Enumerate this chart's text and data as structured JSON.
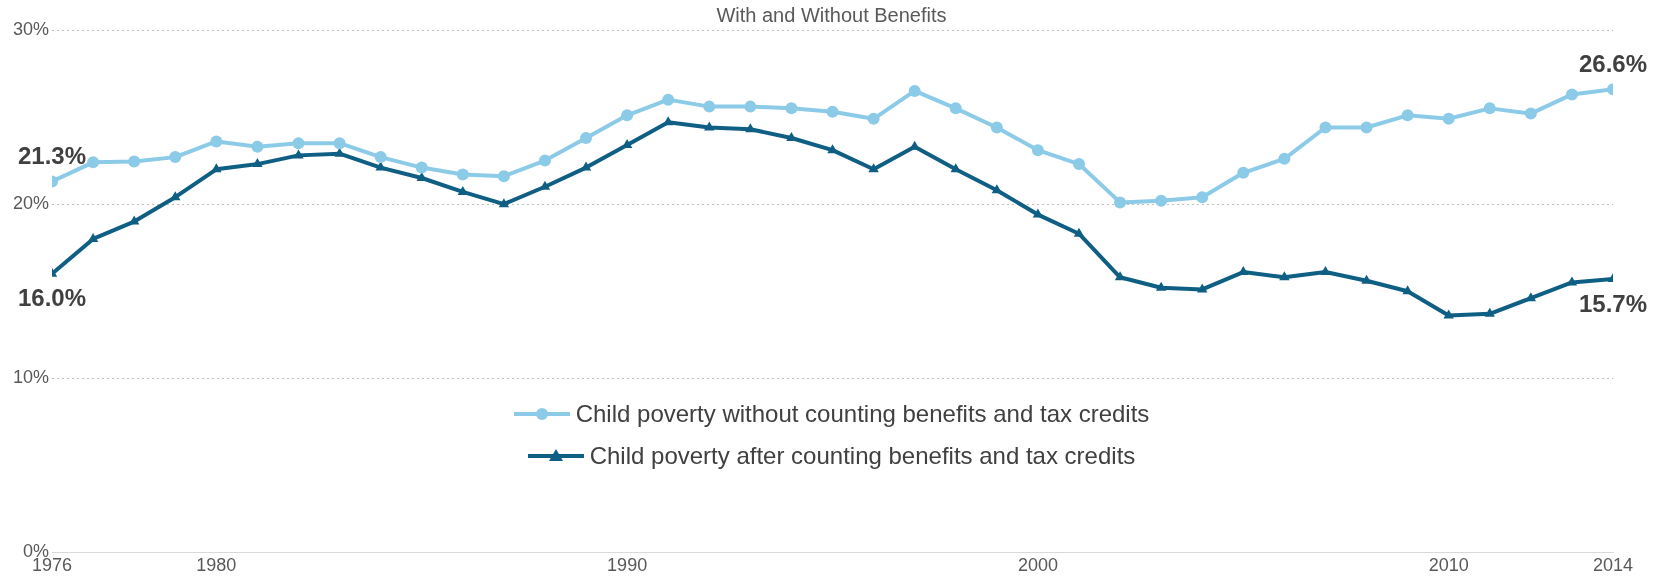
{
  "chart_data": {
    "type": "line",
    "title": "With and Without Benefits",
    "x": [
      1976,
      1977,
      1978,
      1979,
      1980,
      1981,
      1982,
      1983,
      1984,
      1985,
      1986,
      1987,
      1988,
      1989,
      1990,
      1991,
      1992,
      1993,
      1994,
      1995,
      1996,
      1997,
      1998,
      1999,
      2000,
      2001,
      2002,
      2003,
      2004,
      2005,
      2006,
      2007,
      2008,
      2009,
      2010,
      2011,
      2012,
      2013,
      2014
    ],
    "series": [
      {
        "name": "Child poverty without counting benefits and tax credits",
        "color": "#8ccbe8",
        "marker": "circle",
        "values": [
          21.3,
          22.4,
          22.45,
          22.7,
          23.6,
          23.3,
          23.5,
          23.5,
          22.7,
          22.1,
          21.7,
          21.6,
          22.5,
          23.8,
          25.1,
          26.0,
          25.6,
          25.6,
          25.5,
          25.3,
          24.9,
          26.5,
          25.5,
          24.4,
          23.1,
          22.3,
          20.1,
          20.2,
          20.4,
          21.8,
          22.6,
          24.4,
          24.4,
          25.1,
          24.9,
          25.5,
          25.2,
          26.3,
          26.6
        ],
        "value_labels": [
          "21.3%",
          null,
          null,
          null,
          null,
          null,
          null,
          null,
          null,
          null,
          null,
          null,
          null,
          null,
          null,
          null,
          null,
          null,
          null,
          null,
          null,
          null,
          null,
          null,
          null,
          null,
          null,
          null,
          null,
          null,
          null,
          null,
          null,
          null,
          null,
          null,
          null,
          null,
          "26.6%"
        ]
      },
      {
        "name": "Child poverty after counting benefits and tax credits",
        "color": "#0f5f85",
        "marker": "triangle",
        "values": [
          16.0,
          18.0,
          19.0,
          20.4,
          22.0,
          22.3,
          22.8,
          22.9,
          22.1,
          21.5,
          20.7,
          20.0,
          21.0,
          22.1,
          23.4,
          24.7,
          24.4,
          24.3,
          23.8,
          23.1,
          22.0,
          23.3,
          22.0,
          20.8,
          19.4,
          18.3,
          15.8,
          15.2,
          15.1,
          16.1,
          15.8,
          16.1,
          15.6,
          15.0,
          13.6,
          13.7,
          14.6,
          15.5,
          15.7
        ],
        "value_labels": [
          "16.0%",
          null,
          null,
          null,
          null,
          null,
          null,
          null,
          null,
          null,
          null,
          null,
          null,
          null,
          null,
          null,
          null,
          null,
          null,
          null,
          null,
          null,
          null,
          null,
          null,
          null,
          null,
          null,
          null,
          null,
          null,
          null,
          null,
          null,
          null,
          null,
          null,
          null,
          "15.7%"
        ]
      }
    ],
    "xlim": [
      1976,
      2014
    ],
    "xticks": [
      1976,
      1980,
      1990,
      2000,
      2010,
      2014
    ],
    "ylim": [
      0,
      30
    ],
    "yticks": [
      {
        "value": 0,
        "label": "0%"
      },
      {
        "value": 10,
        "label": "10%"
      },
      {
        "value": 20,
        "label": "20%"
      },
      {
        "value": 30,
        "label": "30%"
      }
    ],
    "grid": "y",
    "legend": "bottom",
    "line_style": "solid"
  }
}
